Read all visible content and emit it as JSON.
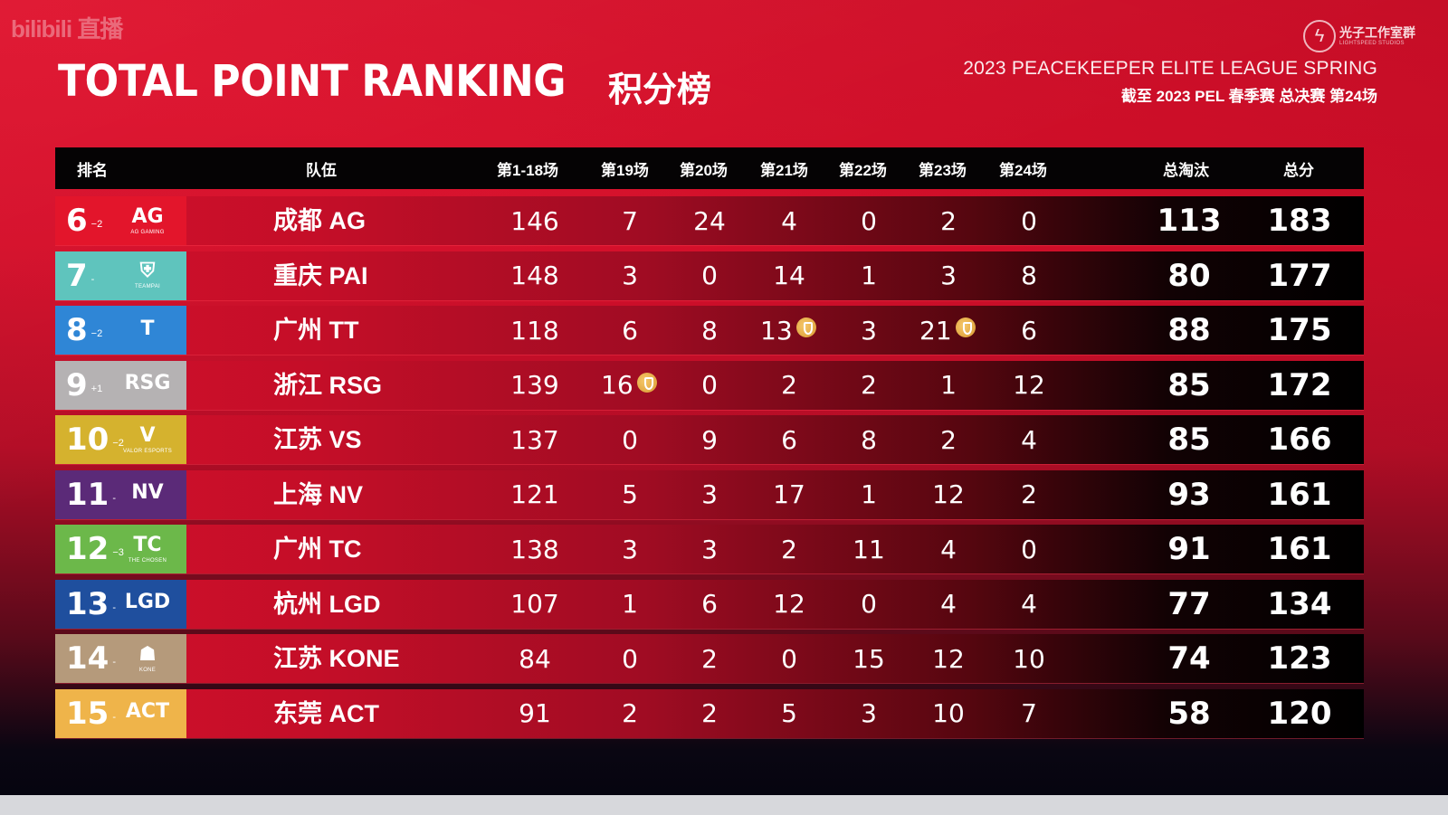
{
  "watermark": "bilibili 直播",
  "header": {
    "title_en": "TOTAL POINT RANKING",
    "title_cn": "积分榜",
    "subtitle_en": "2023 PEACEKEEPER ELITE LEAGUE SPRING",
    "subtitle_cn": "截至 2023 PEL 春季赛 总决赛 第24场",
    "studio_cn": "光子工作室群",
    "studio_en": "LIGHTSPEED STUDIOS",
    "studio_icon": "lightning-bolt-icon"
  },
  "columns": [
    "排名",
    "队伍",
    "第1-18场",
    "第19场",
    "第20场",
    "第21场",
    "第22场",
    "第23场",
    "第24场",
    "总淘汰",
    "总分"
  ],
  "medal_icon": "medal-icon",
  "rows": [
    {
      "rank": "6",
      "change": "−2",
      "color": "#e3152b",
      "logo": "AG",
      "logo_sub": "AG GAMING",
      "team": "成都 AG",
      "g1_18": "146",
      "g19": "7",
      "g20": "24",
      "g21": "4",
      "g22": "0",
      "g23": "2",
      "g24": "0",
      "kills": "113",
      "total": "183",
      "medals": []
    },
    {
      "rank": "7",
      "change": "-",
      "color": "#5fc4bd",
      "logo": "⛨",
      "logo_sub": "TEAMPAI",
      "team": "重庆 PAI",
      "g1_18": "148",
      "g19": "3",
      "g20": "0",
      "g21": "14",
      "g22": "1",
      "g23": "3",
      "g24": "8",
      "kills": "80",
      "total": "177",
      "medals": []
    },
    {
      "rank": "8",
      "change": "−2",
      "color": "#2f86d6",
      "logo": "T",
      "logo_sub": "",
      "team": "广州 TT",
      "g1_18": "118",
      "g19": "6",
      "g20": "8",
      "g21": "13",
      "g22": "3",
      "g23": "21",
      "g24": "6",
      "kills": "88",
      "total": "175",
      "medals": [
        "g21",
        "g23"
      ]
    },
    {
      "rank": "9",
      "change": "+1",
      "color": "#b5b2b3",
      "logo": "RSG",
      "logo_sub": "",
      "team": "浙江 RSG",
      "g1_18": "139",
      "g19": "16",
      "g20": "0",
      "g21": "2",
      "g22": "2",
      "g23": "1",
      "g24": "12",
      "kills": "85",
      "total": "172",
      "medals": [
        "g19"
      ]
    },
    {
      "rank": "10",
      "change": "−2",
      "color": "#d5b22e",
      "logo": "V",
      "logo_sub": "VALOR ESPORTS",
      "team": "江苏 VS",
      "g1_18": "137",
      "g19": "0",
      "g20": "9",
      "g21": "6",
      "g22": "8",
      "g23": "2",
      "g24": "4",
      "kills": "85",
      "total": "166",
      "medals": []
    },
    {
      "rank": "11",
      "change": "-",
      "color": "#5b2a78",
      "logo": "NV",
      "logo_sub": "",
      "team": "上海 NV",
      "g1_18": "121",
      "g19": "5",
      "g20": "3",
      "g21": "17",
      "g22": "1",
      "g23": "12",
      "g24": "2",
      "kills": "93",
      "total": "161",
      "medals": []
    },
    {
      "rank": "12",
      "change": "−3",
      "color": "#6cb84a",
      "logo": "TC",
      "logo_sub": "THE CHOSEN",
      "team": "广州 TC",
      "g1_18": "138",
      "g19": "3",
      "g20": "3",
      "g21": "2",
      "g22": "11",
      "g23": "4",
      "g24": "0",
      "kills": "91",
      "total": "161",
      "medals": []
    },
    {
      "rank": "13",
      "change": "-",
      "color": "#1f4f9e",
      "logo": "LGD",
      "logo_sub": "",
      "team": "杭州 LGD",
      "g1_18": "107",
      "g19": "1",
      "g20": "6",
      "g21": "12",
      "g22": "0",
      "g23": "4",
      "g24": "4",
      "kills": "77",
      "total": "134",
      "medals": []
    },
    {
      "rank": "14",
      "change": "-",
      "color": "#b59a7b",
      "logo": "☗",
      "logo_sub": "KONE",
      "team": "江苏 KONE",
      "g1_18": "84",
      "g19": "0",
      "g20": "2",
      "g21": "0",
      "g22": "15",
      "g23": "12",
      "g24": "10",
      "kills": "74",
      "total": "123",
      "medals": []
    },
    {
      "rank": "15",
      "change": "-",
      "color": "#efb44a",
      "logo": "ACT",
      "logo_sub": "",
      "team": "东莞 ACT",
      "g1_18": "91",
      "g19": "2",
      "g20": "2",
      "g21": "5",
      "g22": "3",
      "g23": "10",
      "g24": "7",
      "kills": "58",
      "total": "120",
      "medals": []
    }
  ]
}
